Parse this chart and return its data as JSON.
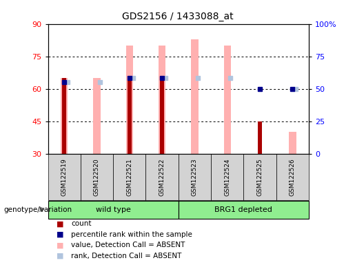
{
  "title": "GDS2156 / 1433088_at",
  "samples": [
    "GSM122519",
    "GSM122520",
    "GSM122521",
    "GSM122522",
    "GSM122523",
    "GSM122524",
    "GSM122525",
    "GSM122526"
  ],
  "group_names": [
    "wild type",
    "BRG1 depleted"
  ],
  "group_ranges": [
    [
      0,
      4
    ],
    [
      4,
      8
    ]
  ],
  "count_values": [
    65,
    null,
    65,
    65,
    null,
    null,
    45,
    null
  ],
  "percentile_rank": [
    63,
    null,
    65,
    65,
    null,
    null,
    null,
    null
  ],
  "percentile_rank_absent": [
    null,
    null,
    null,
    null,
    null,
    null,
    60,
    60
  ],
  "value_absent": [
    65,
    65,
    80,
    80,
    83,
    80,
    null,
    40
  ],
  "rank_absent": [
    63,
    63,
    65,
    65,
    65,
    65,
    null,
    60
  ],
  "ylim": [
    30,
    90
  ],
  "yticks": [
    30,
    45,
    60,
    75,
    90
  ],
  "right_ylim": [
    0,
    100
  ],
  "right_yticks": [
    0,
    25,
    50,
    75,
    100
  ],
  "right_yticklabels": [
    "0",
    "25",
    "50",
    "75",
    "100%"
  ],
  "bar_color": "#aa0000",
  "rank_color": "#00008b",
  "value_absent_color": "#ffb0b0",
  "rank_absent_color": "#b0c4de",
  "bg_color": "#d3d3d3",
  "group_bg": "#90ee90",
  "legend_items": [
    {
      "color": "#aa0000",
      "label": "count"
    },
    {
      "color": "#00008b",
      "label": "percentile rank within the sample"
    },
    {
      "color": "#ffb0b0",
      "label": "value, Detection Call = ABSENT"
    },
    {
      "color": "#b0c4de",
      "label": "rank, Detection Call = ABSENT"
    }
  ]
}
